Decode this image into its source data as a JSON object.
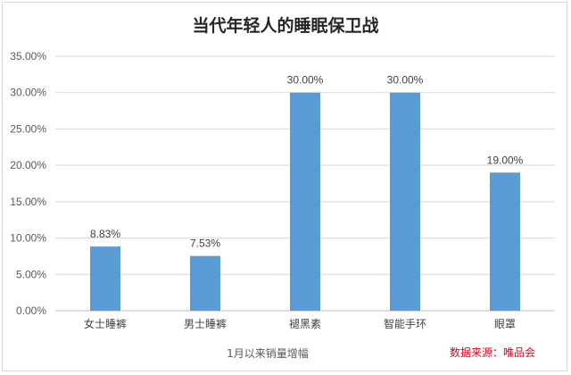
{
  "chart_data": {
    "type": "bar",
    "title": "当代年轻人的睡眠保卫战",
    "xlabel": "1月以来销量增幅",
    "ylabel": "",
    "categories": [
      "女士睡裤",
      "男士睡裤",
      "褪黑素",
      "智能手环",
      "眼罩"
    ],
    "values": [
      8.83,
      7.53,
      30.0,
      30.0,
      19.0
    ],
    "data_labels": [
      "8.83%",
      "7.53%",
      "30.00%",
      "30.00%",
      "19.00%"
    ],
    "ylim": [
      0,
      35
    ],
    "yticks": [
      "0.00%",
      "5.00%",
      "10.00%",
      "15.00%",
      "20.00%",
      "25.00%",
      "30.00%",
      "35.00%"
    ],
    "ytick_values": [
      0,
      5,
      10,
      15,
      20,
      25,
      30,
      35
    ],
    "grid": true,
    "bar_color": "#5b9bd5"
  },
  "source_note": "数据来源：唯品会"
}
